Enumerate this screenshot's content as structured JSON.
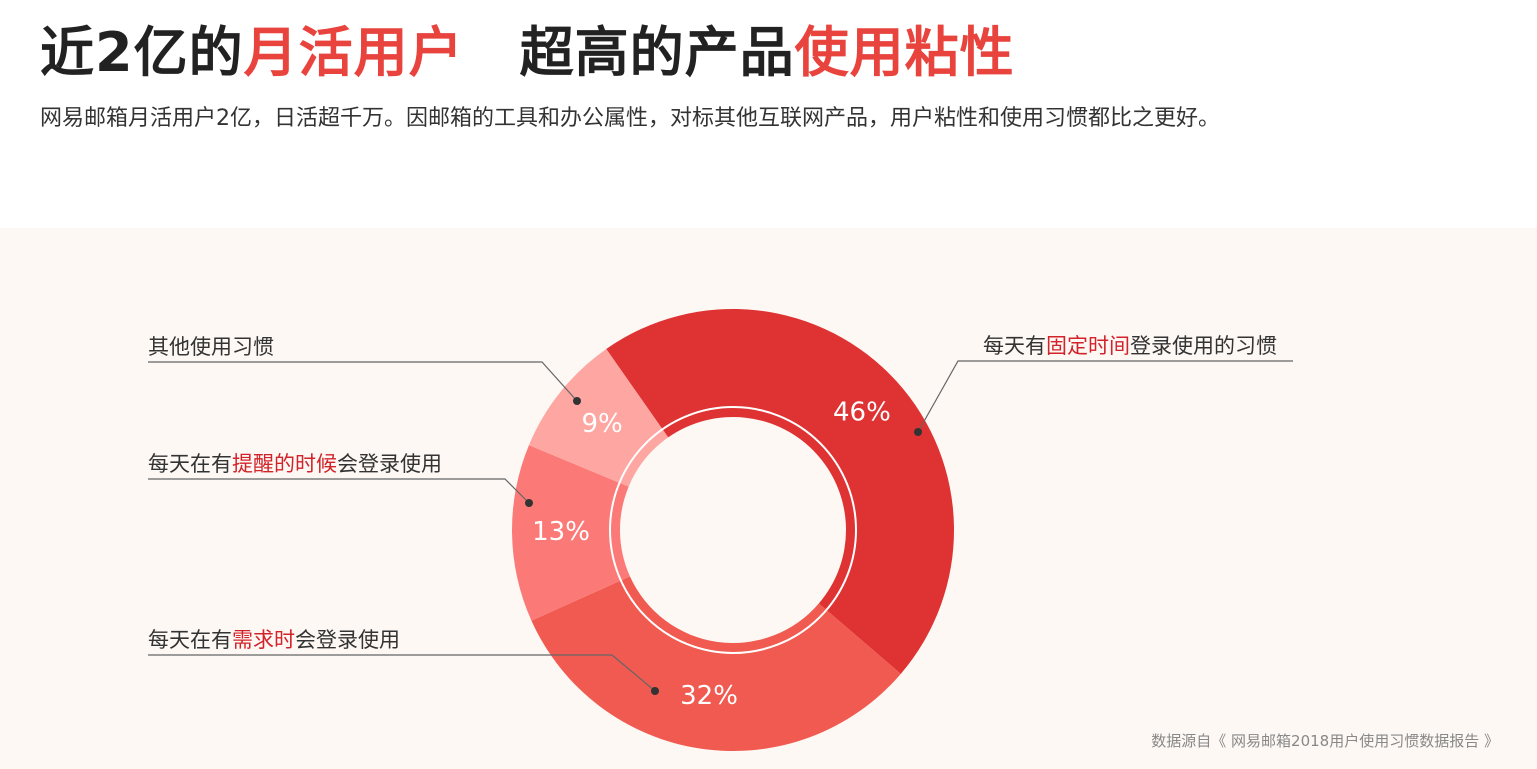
{
  "title": {
    "part1": "近2亿的",
    "part1_highlight": "月活用户",
    "part2": "超高的产品",
    "part2_highlight": "使用粘性"
  },
  "subtitle": "网易邮箱月活用户2亿，日活超千万。因邮箱的工具和办公属性，对标其他互联网产品，用户粘性和使用习惯都比之更好。",
  "source": "数据源自《 网易邮箱2018用户使用习惯数据报告 》",
  "colors": {
    "accent": "#e8433d",
    "highlight_text": "#d2232a",
    "panel_bg": "#fdf8f4"
  },
  "callouts": {
    "fixed_time": {
      "pre": "每天有",
      "hl": "固定时间",
      "post": "登录使用的习惯"
    },
    "other": {
      "pre": "其他使用习惯",
      "hl": "",
      "post": ""
    },
    "reminder": {
      "pre": "每天在有",
      "hl": "提醒的时候",
      "post": "会登录使用"
    },
    "demand": {
      "pre": "每天在有",
      "hl": "需求时",
      "post": "会登录使用"
    }
  },
  "chart_data": {
    "type": "pie",
    "donut": true,
    "categories": [
      "每天有固定时间登录使用的习惯",
      "每天在有需求时会登录使用",
      "每天在有提醒的时候会登录使用",
      "其他使用习惯"
    ],
    "values": [
      46,
      32,
      13,
      9
    ],
    "labels": [
      "46%",
      "32%",
      "13%",
      "9%"
    ],
    "colors": [
      "#df3233",
      "#f05a50",
      "#fb7a78",
      "#fda6a2"
    ]
  }
}
